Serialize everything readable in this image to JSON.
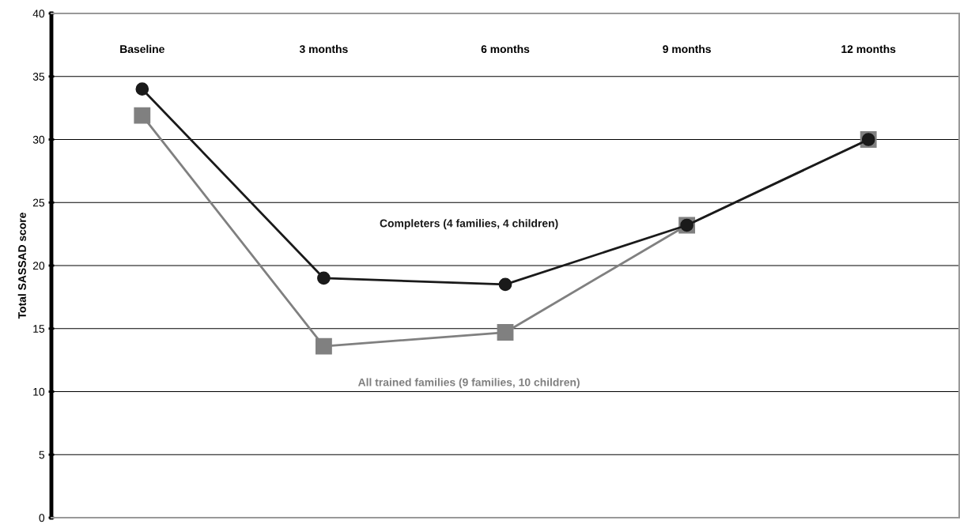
{
  "chart_data": {
    "type": "line",
    "ylabel": "Total SASSAD score",
    "categories": [
      "Baseline",
      "3 months",
      "6 months",
      "9 months",
      "12 months"
    ],
    "series": [
      {
        "name": "Completers (4 families, 4 children)",
        "color": "#1a1a1a",
        "marker": "circle",
        "values": [
          34,
          19,
          18.5,
          23.2,
          30
        ]
      },
      {
        "name": "All trained families (9 families, 10 children)",
        "color": "#808080",
        "marker": "square",
        "values": [
          31.9,
          13.6,
          14.7,
          23.2,
          30
        ]
      }
    ],
    "ylim": [
      0,
      40
    ],
    "yticks": [
      0,
      5,
      10,
      15,
      20,
      25,
      30,
      35,
      40
    ],
    "grid": "y",
    "legend": false
  }
}
